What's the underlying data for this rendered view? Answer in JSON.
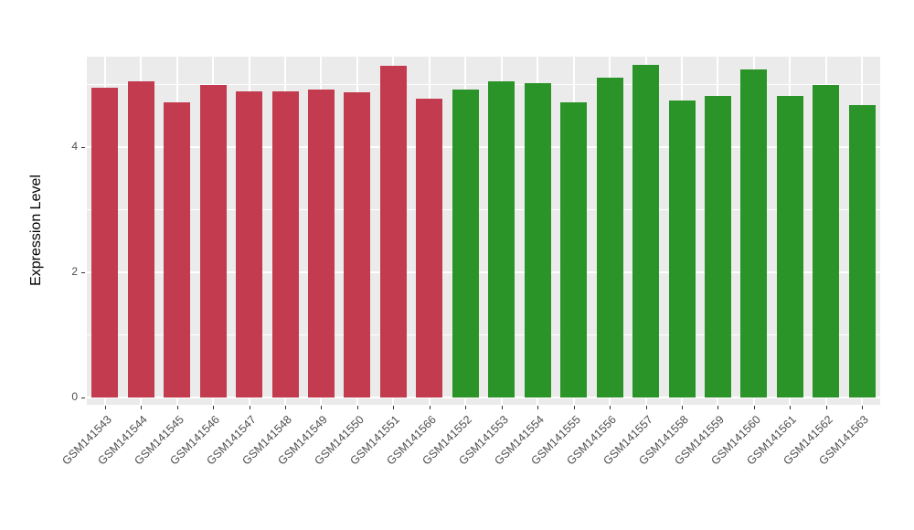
{
  "chart_data": {
    "type": "bar",
    "title": "",
    "xlabel": "",
    "ylabel": "Expression Level",
    "ylim": [
      0,
      5.45
    ],
    "yticks": [
      0,
      2,
      4
    ],
    "minor_gridlines": [
      1,
      3,
      5
    ],
    "grid": "on",
    "legend_position": "none",
    "categories": [
      "GSM141543",
      "GSM141544",
      "GSM141545",
      "GSM141546",
      "GSM141547",
      "GSM141548",
      "GSM141549",
      "GSM141550",
      "GSM141551",
      "GSM141566",
      "GSM141552",
      "GSM141553",
      "GSM141554",
      "GSM141555",
      "GSM141556",
      "GSM141557",
      "GSM141558",
      "GSM141559",
      "GSM141560",
      "GSM141561",
      "GSM141562",
      "GSM141563"
    ],
    "values": [
      4.95,
      5.05,
      4.72,
      5.0,
      4.9,
      4.9,
      4.93,
      4.88,
      5.3,
      4.78,
      4.92,
      5.05,
      5.02,
      4.72,
      5.12,
      5.32,
      4.75,
      4.82,
      5.25,
      4.82,
      5.0,
      4.68
    ],
    "colors": [
      "#C33B4E",
      "#C33B4E",
      "#C33B4E",
      "#C33B4E",
      "#C33B4E",
      "#C33B4E",
      "#C33B4E",
      "#C33B4E",
      "#C33B4E",
      "#C33B4E",
      "#2B9428",
      "#2B9428",
      "#2B9428",
      "#2B9428",
      "#2B9428",
      "#2B9428",
      "#2B9428",
      "#2B9428",
      "#2B9428",
      "#2B9428",
      "#2B9428",
      "#2B9428"
    ]
  },
  "style": {
    "panel_bg": "#EBEBEB",
    "grid_color": "#FFFFFF",
    "tick_color": "#333333",
    "tick_text_color": "#4D4D4D",
    "axis_title_color": "#000000",
    "figure_bg": "#FFFFFF"
  }
}
